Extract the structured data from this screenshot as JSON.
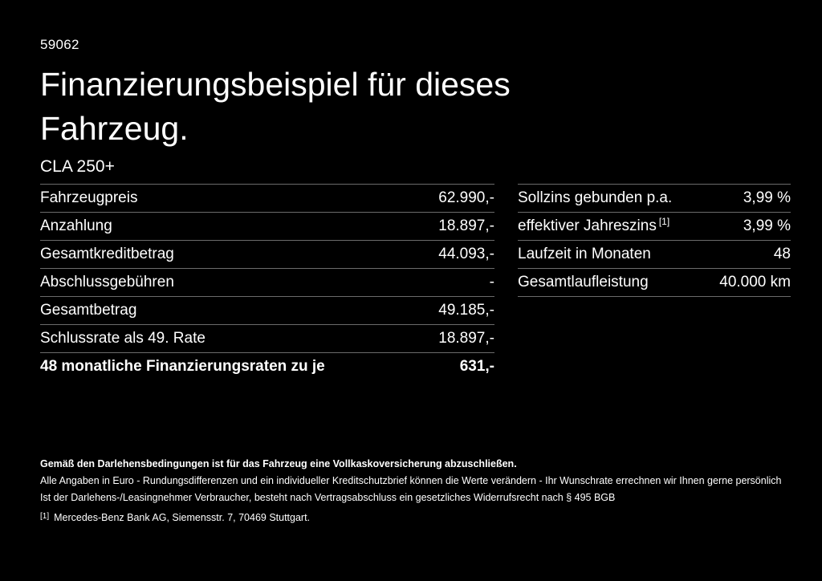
{
  "page": {
    "code": "59062",
    "title_line1": "Finanzierungsbeispiel für dieses",
    "title_line2": "Fahrzeug.",
    "model": "CLA 250+"
  },
  "colors": {
    "background": "#000000",
    "text": "#ffffff",
    "divider": "#6b6b6b"
  },
  "tables": {
    "left": {
      "rows": [
        {
          "label": "Fahrzeugpreis",
          "value": "62.990,-"
        },
        {
          "label": "Anzahlung",
          "value": "18.897,-"
        },
        {
          "label": "Gesamtkreditbetrag",
          "value": "44.093,-"
        },
        {
          "label": "Abschlussgebühren",
          "value": "-"
        },
        {
          "label": "Gesamtbetrag",
          "value": "49.185,-"
        },
        {
          "label": "Schlussrate als 49. Rate",
          "value": "18.897,-"
        },
        {
          "label": "48 monatliche Finanzierungsraten zu je",
          "value": "631,-"
        }
      ]
    },
    "right": {
      "rows": [
        {
          "label": "Sollzins gebunden p.a.",
          "value": "3,99 %"
        },
        {
          "label": "effektiver Jahreszins",
          "sup": "[1]",
          "value": "3,99 %"
        },
        {
          "label": "Laufzeit in Monaten",
          "value": "48"
        },
        {
          "label": "Gesamtlaufleistung",
          "value": "40.000 km"
        }
      ]
    }
  },
  "footer": {
    "insurance_note": "Gemäß den Darlehensbedingungen ist für das Fahrzeug eine Vollkaskoversicherung abzuschließen.",
    "disclaimer_line1": "Alle Angaben in Euro - Rundungsdifferenzen und ein individueller Kreditschutzbrief können die Werte verändern - Ihr Wunschrate errechnen wir Ihnen gerne persönlich",
    "disclaimer_line2": "Ist der Darlehens-/Leasingnehmer Verbraucher, besteht nach Vertragsabschluss ein gesetzliches Widerrufsrecht nach § 495 BGB",
    "footnote_marker": "[1]",
    "footnote_text": "Mercedes-Benz Bank AG, Siemensstr. 7, 70469 Stuttgart."
  }
}
